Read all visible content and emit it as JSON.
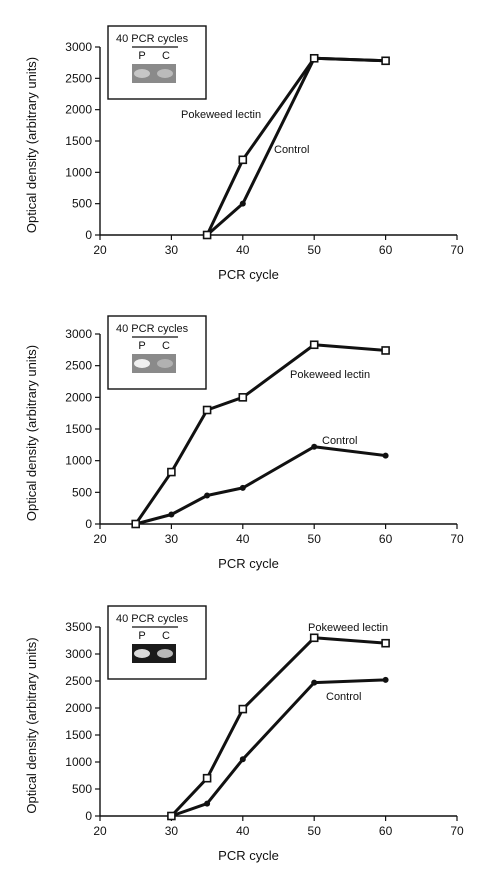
{
  "chart_data": [
    {
      "type": "line",
      "xlabel": "PCR cycle",
      "ylabel": "Optical density (arbitrary units)",
      "xlim": [
        20,
        70
      ],
      "ylim": [
        0,
        3000
      ],
      "xticks": [
        20,
        30,
        40,
        50,
        60,
        70
      ],
      "yticks": [
        0,
        500,
        1000,
        1500,
        2000,
        2500,
        3000
      ],
      "grid": false,
      "inset": {
        "title": "40 PCR cycles",
        "lanes": [
          "P",
          "C"
        ],
        "band_intensity": [
          0.55,
          0.45
        ]
      },
      "series": [
        {
          "name": "Pokeweed lectin",
          "marker": "open-square",
          "x": [
            35,
            40,
            50,
            60
          ],
          "y": [
            0,
            1200,
            2820,
            2780
          ]
        },
        {
          "name": "Control",
          "marker": "filled-circle",
          "x": [
            35,
            40,
            50,
            60
          ],
          "y": [
            0,
            500,
            2820,
            2780
          ]
        }
      ]
    },
    {
      "type": "line",
      "xlabel": "PCR cycle",
      "ylabel": "Optical density (arbitrary units)",
      "xlim": [
        20,
        70
      ],
      "ylim": [
        0,
        3000
      ],
      "xticks": [
        20,
        30,
        40,
        50,
        60,
        70
      ],
      "yticks": [
        0,
        500,
        1000,
        1500,
        2000,
        2500,
        3000
      ],
      "grid": false,
      "inset": {
        "title": "40 PCR cycles",
        "lanes": [
          "P",
          "C"
        ],
        "band_intensity": [
          0.95,
          0.35
        ]
      },
      "series": [
        {
          "name": "Pokeweed lectin",
          "marker": "open-square",
          "x": [
            25,
            30,
            35,
            40,
            50,
            60
          ],
          "y": [
            0,
            820,
            1800,
            2000,
            2830,
            2740
          ]
        },
        {
          "name": "Control",
          "marker": "filled-circle",
          "x": [
            25,
            30,
            35,
            40,
            50,
            60
          ],
          "y": [
            0,
            150,
            450,
            570,
            1220,
            1080
          ]
        }
      ]
    },
    {
      "type": "line",
      "xlabel": "PCR cycle",
      "ylabel": "Optical density (arbitrary units)",
      "xlim": [
        20,
        70
      ],
      "ylim": [
        0,
        3500
      ],
      "xticks": [
        20,
        30,
        40,
        50,
        60,
        70
      ],
      "yticks": [
        0,
        500,
        1000,
        1500,
        2000,
        2500,
        3000,
        3500
      ],
      "grid": false,
      "inset": {
        "title": "40 PCR cycles",
        "lanes": [
          "P",
          "C"
        ],
        "band_intensity": [
          0.9,
          0.7
        ]
      },
      "series": [
        {
          "name": "Pokeweed lectin",
          "marker": "open-square",
          "x": [
            30,
            35,
            40,
            50,
            60
          ],
          "y": [
            0,
            700,
            1980,
            3300,
            3200
          ]
        },
        {
          "name": "Control",
          "marker": "filled-circle",
          "x": [
            30,
            35,
            40,
            50,
            60
          ],
          "y": [
            0,
            230,
            1050,
            2470,
            2520
          ]
        }
      ]
    }
  ]
}
